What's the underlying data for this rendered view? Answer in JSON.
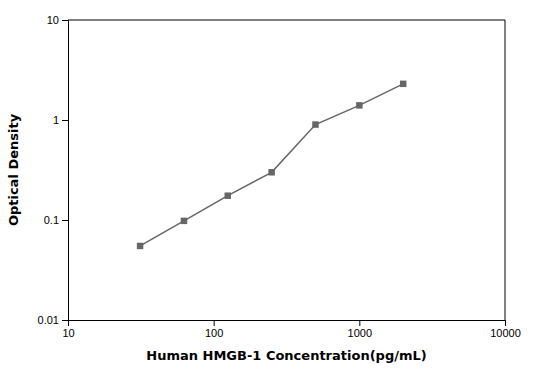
{
  "chart_data": {
    "type": "line",
    "x": [
      31.25,
      62.5,
      125,
      250,
      500,
      1000,
      2000
    ],
    "values": [
      0.055,
      0.098,
      0.175,
      0.3,
      0.9,
      1.4,
      2.3
    ],
    "xlabel": "Human HMGB-1 Concentration(pg/mL)",
    "ylabel": "Optical Density",
    "xlim": [
      10,
      10000
    ],
    "ylim": [
      0.01,
      10
    ],
    "xticks": [
      10,
      100,
      1000,
      10000
    ],
    "yticks": [
      0.01,
      0.1,
      1,
      10
    ],
    "log": true,
    "grid": false,
    "color": "#666666",
    "marker": "square"
  }
}
